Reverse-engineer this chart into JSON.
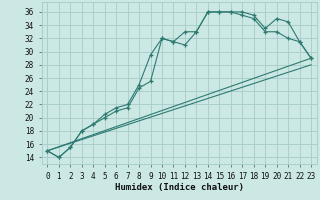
{
  "xlabel": "Humidex (Indice chaleur)",
  "bg_color": "#cce8e4",
  "grid_color": "#aacfca",
  "line_color": "#2d7a72",
  "xlim": [
    -0.5,
    23.5
  ],
  "ylim": [
    13,
    37.5
  ],
  "yticks": [
    14,
    16,
    18,
    20,
    22,
    24,
    26,
    28,
    30,
    32,
    34,
    36
  ],
  "xticks": [
    0,
    1,
    2,
    3,
    4,
    5,
    6,
    7,
    8,
    9,
    10,
    11,
    12,
    13,
    14,
    15,
    16,
    17,
    18,
    19,
    20,
    21,
    22,
    23
  ],
  "series": [
    {
      "x": [
        0,
        1,
        2,
        3,
        4,
        5,
        6,
        7,
        8,
        9,
        10,
        11,
        12,
        13,
        14,
        15,
        16,
        17,
        18,
        19,
        20,
        21,
        22,
        23
      ],
      "y": [
        15,
        14,
        15.5,
        18,
        19,
        20.5,
        21.5,
        22,
        25,
        29.5,
        32,
        31.5,
        33,
        33,
        36,
        36,
        36,
        36,
        35.5,
        33.5,
        35,
        34.5,
        31.5,
        29
      ],
      "marker": true
    },
    {
      "x": [
        0,
        1,
        2,
        3,
        4,
        5,
        6,
        7,
        8,
        9,
        10,
        11,
        12,
        13,
        14,
        15,
        16,
        17,
        18,
        19,
        20,
        21,
        22,
        23
      ],
      "y": [
        15,
        14,
        15.5,
        18,
        19,
        20,
        21,
        21.5,
        24.5,
        25.5,
        32,
        31.5,
        31,
        33,
        36,
        36,
        36,
        35.5,
        35,
        33,
        33,
        32,
        31.5,
        29
      ],
      "marker": true
    },
    {
      "x": [
        0,
        23
      ],
      "y": [
        15,
        29
      ],
      "marker": false
    },
    {
      "x": [
        0,
        23
      ],
      "y": [
        15,
        28
      ],
      "marker": false
    }
  ]
}
